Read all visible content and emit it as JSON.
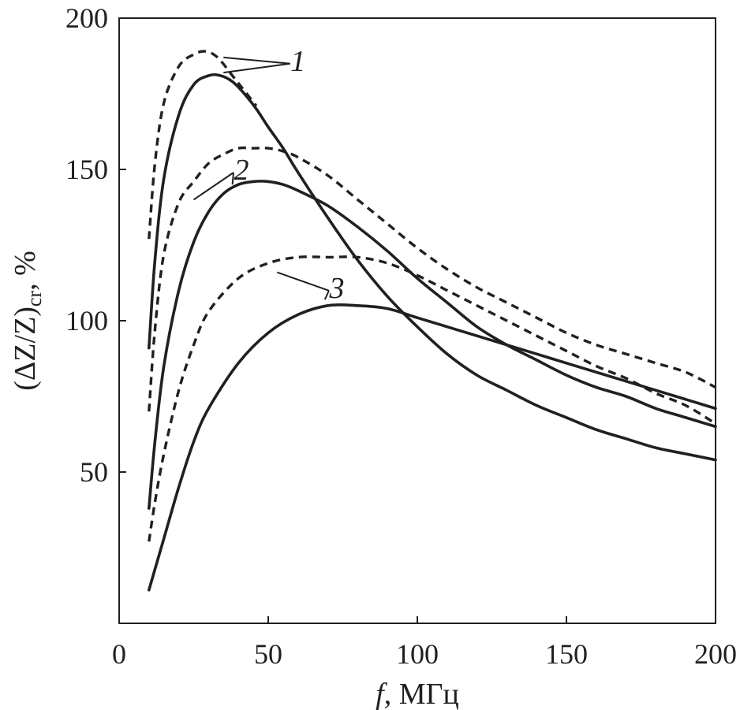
{
  "chart_data": {
    "type": "line",
    "title": "",
    "xlabel": {
      "italic": "f",
      "rest": ", МГц"
    },
    "ylabel": {
      "main": "(ΔZ/Z)",
      "sub": "cr",
      "tail": ", %"
    },
    "xlim": [
      0,
      200
    ],
    "ylim": [
      0,
      200
    ],
    "xticks": [
      0,
      50,
      100,
      150,
      200
    ],
    "yticks": [
      50,
      100,
      150,
      200
    ],
    "grid": false,
    "series": [
      {
        "name": "1 solid",
        "group": "1",
        "style": "solid",
        "x": [
          10,
          12,
          15,
          20,
          25,
          30,
          34,
          38,
          42,
          46,
          50,
          55,
          60,
          70,
          80,
          90,
          100,
          110,
          120,
          130,
          140,
          150,
          160,
          170,
          180,
          190,
          200
        ],
        "y": [
          91,
          120,
          147,
          168,
          178,
          181,
          181,
          179,
          175,
          170,
          164,
          157,
          149,
          134,
          120,
          108,
          98,
          89,
          82,
          77,
          72,
          68,
          64,
          61,
          58,
          56,
          54
        ]
      },
      {
        "name": "1 dashed",
        "group": "1",
        "style": "dashed",
        "x": [
          10,
          12,
          15,
          20,
          25,
          29,
          33,
          38,
          42,
          46
        ],
        "y": [
          127,
          152,
          172,
          184,
          188,
          189,
          187,
          181,
          176,
          171
        ]
      },
      {
        "name": "2 solid",
        "group": "2",
        "style": "solid",
        "x": [
          10,
          12,
          15,
          20,
          25,
          30,
          35,
          40,
          45,
          50,
          55,
          60,
          70,
          80,
          90,
          100,
          110,
          120,
          130,
          140,
          150,
          160,
          170,
          180,
          190,
          200
        ],
        "y": [
          38,
          60,
          85,
          110,
          126,
          136,
          142,
          145,
          146,
          146,
          145,
          143,
          138,
          131,
          123,
          114,
          106,
          98,
          92,
          87,
          82,
          78,
          75,
          71,
          68,
          65
        ]
      },
      {
        "name": "2 dashed",
        "group": "2",
        "style": "dashed",
        "x": [
          10,
          12,
          15,
          20,
          25,
          30,
          35,
          40,
          45,
          50,
          55,
          60,
          70,
          80,
          90,
          100,
          110,
          120,
          130,
          140,
          150,
          160,
          170,
          180,
          190,
          200
        ],
        "y": [
          70,
          97,
          122,
          139,
          146,
          152,
          155,
          157,
          157,
          157,
          156,
          154,
          148,
          140,
          132,
          124,
          117,
          111,
          106,
          101,
          96,
          92,
          89,
          86,
          83,
          78
        ]
      },
      {
        "name": "3 solid",
        "group": "3",
        "style": "solid",
        "x": [
          10,
          15,
          20,
          25,
          30,
          40,
          50,
          60,
          70,
          80,
          90,
          100,
          110,
          120,
          130,
          140,
          150,
          160,
          170,
          180,
          190,
          200
        ],
        "y": [
          11,
          28,
          45,
          60,
          71,
          86,
          96,
          102,
          105,
          105,
          104,
          101,
          98,
          95,
          92,
          89,
          86,
          83,
          80,
          77,
          74,
          71
        ]
      },
      {
        "name": "3 dashed",
        "group": "3",
        "style": "dashed",
        "x": [
          10,
          12,
          15,
          20,
          25,
          30,
          40,
          50,
          60,
          70,
          80,
          90,
          100,
          110,
          120,
          130,
          140,
          150,
          160,
          170,
          180,
          190,
          200
        ],
        "y": [
          27,
          40,
          56,
          77,
          92,
          103,
          114,
          119,
          121,
          121,
          121,
          119,
          115,
          110,
          105,
          100,
          95,
          90,
          85,
          81,
          76,
          72,
          66
        ]
      }
    ],
    "annotations": [
      {
        "text": "1",
        "at": [
          60,
          186
        ],
        "points_to": [
          [
            35,
            187
          ],
          [
            35,
            182
          ]
        ]
      },
      {
        "text": "2",
        "at": [
          41,
          150
        ],
        "points_to": [
          [
            25,
            140
          ],
          [
            38,
            145
          ]
        ]
      },
      {
        "text": "3",
        "at": [
          73,
          111
        ],
        "points_to": [
          [
            53,
            116
          ],
          [
            69,
            107
          ]
        ]
      }
    ]
  }
}
